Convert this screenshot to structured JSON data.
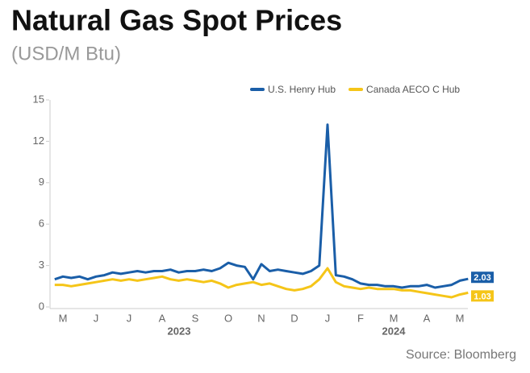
{
  "chart_data": {
    "type": "line",
    "title": "Natural Gas Spot Prices",
    "subtitle": "(USD/M Btu)",
    "source": "Source: Bloomberg",
    "categories": [
      null,
      "M",
      null,
      null,
      null,
      "J",
      null,
      null,
      null,
      "J",
      null,
      null,
      null,
      "A",
      null,
      null,
      null,
      "S",
      null,
      null,
      null,
      "O",
      null,
      null,
      null,
      "N",
      null,
      null,
      null,
      "D",
      null,
      null,
      null,
      "J",
      null,
      null,
      null,
      "F",
      null,
      null,
      null,
      "M",
      null,
      null,
      null,
      "A",
      null,
      null,
      null,
      "M",
      null
    ],
    "year_labels": [
      "2023",
      "2024"
    ],
    "series": [
      {
        "name": "U.S. Henry Hub",
        "color": "#1a5ea8",
        "values": [
          2.0,
          2.2,
          2.1,
          2.2,
          2.0,
          2.2,
          2.3,
          2.5,
          2.4,
          2.5,
          2.6,
          2.5,
          2.6,
          2.6,
          2.7,
          2.5,
          2.6,
          2.6,
          2.7,
          2.6,
          2.8,
          3.2,
          3.0,
          2.9,
          2.0,
          3.1,
          2.6,
          2.7,
          2.6,
          2.5,
          2.4,
          2.6,
          3.0,
          13.2,
          2.3,
          2.2,
          2.0,
          1.7,
          1.6,
          1.6,
          1.5,
          1.5,
          1.4,
          1.5,
          1.5,
          1.6,
          1.4,
          1.5,
          1.6,
          1.9,
          2.03
        ]
      },
      {
        "name": "Canada AECO C Hub",
        "color": "#f5c518",
        "values": [
          1.6,
          1.6,
          1.5,
          1.6,
          1.7,
          1.8,
          1.9,
          2.0,
          1.9,
          2.0,
          1.9,
          2.0,
          2.1,
          2.2,
          2.0,
          1.9,
          2.0,
          1.9,
          1.8,
          1.9,
          1.7,
          1.4,
          1.6,
          1.7,
          1.8,
          1.6,
          1.7,
          1.5,
          1.3,
          1.2,
          1.3,
          1.5,
          2.0,
          2.8,
          1.8,
          1.5,
          1.4,
          1.3,
          1.4,
          1.3,
          1.3,
          1.3,
          1.2,
          1.2,
          1.1,
          1.0,
          0.9,
          0.8,
          0.7,
          0.9,
          1.03
        ]
      }
    ],
    "ylim": [
      0,
      15
    ],
    "yticks": [
      0,
      3,
      6,
      9,
      12,
      15
    ],
    "legend": "top-right"
  }
}
